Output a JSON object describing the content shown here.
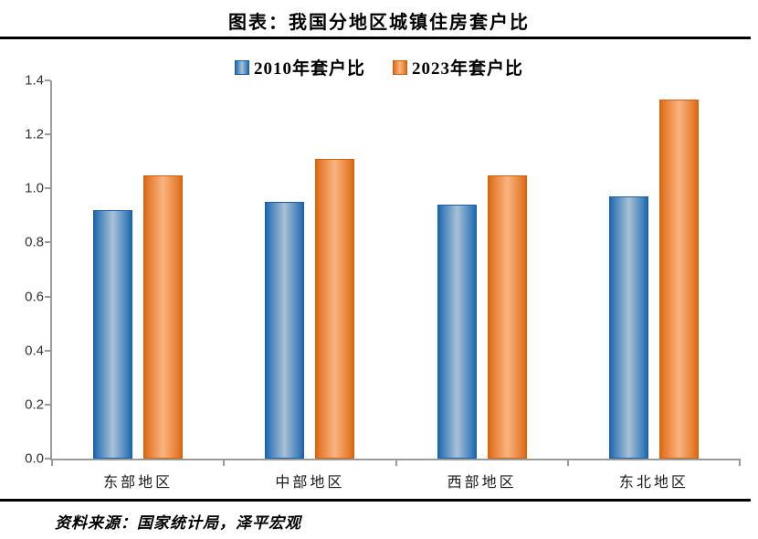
{
  "title": "图表：我国分地区城镇住房套户比",
  "legend": {
    "items": [
      {
        "label": "2010年套户比"
      },
      {
        "label": "2023年套户比"
      }
    ]
  },
  "chart_data": {
    "type": "bar",
    "categories": [
      "东部地区",
      "中部地区",
      "西部地区",
      "东北地区"
    ],
    "series": [
      {
        "name": "2010年套户比",
        "color_edge": "#1c66ae",
        "color_center": "#a9c1d5",
        "values": [
          0.92,
          0.95,
          0.94,
          0.97
        ]
      },
      {
        "name": "2023年套户比",
        "color_edge": "#d96810",
        "color_center": "#f9b480",
        "values": [
          1.05,
          1.11,
          1.05,
          1.33
        ]
      }
    ],
    "title": "图表：我国分地区城镇住房套户比",
    "xlabel": "",
    "ylabel": "",
    "ylim": [
      0.0,
      1.4
    ],
    "ytick_step": 0.2,
    "ytick_labels": [
      "0.0",
      "0.2",
      "0.4",
      "0.6",
      "0.8",
      "1.0",
      "1.2",
      "1.4"
    ],
    "grid": false,
    "legend_position": "top-center"
  },
  "source_note": "资料来源：国家统计局，泽平宏观",
  "colors": {
    "axis": "#9b9b9b",
    "title_text": "#000000",
    "rule": "#000000"
  }
}
